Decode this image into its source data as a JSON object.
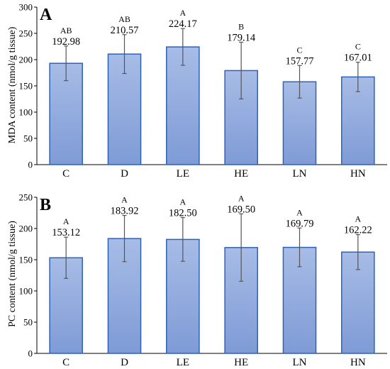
{
  "chart_data": [
    {
      "type": "bar",
      "panel_label": "A",
      "ylabel": "MDA content (nmol/g tissue)",
      "ylim": [
        0,
        300
      ],
      "yticks": [
        0,
        50,
        100,
        150,
        200,
        250,
        300
      ],
      "categories": [
        "C",
        "D",
        "LE",
        "HE",
        "LN",
        "HN"
      ],
      "values": [
        192.98,
        210.57,
        224.17,
        179.14,
        157.77,
        167.01
      ],
      "value_labels": [
        "192.98",
        "210.57",
        "224.17",
        "179.14",
        "157.77",
        "167.01"
      ],
      "error": [
        33,
        37,
        35,
        54,
        31,
        28
      ],
      "significance": [
        "AB",
        "AB",
        "A",
        "B",
        "C",
        "C"
      ],
      "bar_color": "#8EA8DC",
      "bar_edge": "#2E62B8"
    },
    {
      "type": "bar",
      "panel_label": "B",
      "ylabel": "PC content (nmol/g tissue)",
      "ylim": [
        0,
        250
      ],
      "yticks": [
        0,
        50,
        100,
        150,
        200,
        250
      ],
      "categories": [
        "C",
        "D",
        "LE",
        "HE",
        "LN",
        "HN"
      ],
      "values": [
        153.12,
        183.92,
        182.5,
        169.5,
        169.79,
        162.22
      ],
      "value_labels": [
        "153.12",
        "183.92",
        "182.50",
        "169.50",
        "169.79",
        "162.22"
      ],
      "error": [
        33,
        37,
        35,
        54,
        31,
        28
      ],
      "significance": [
        "A",
        "A",
        "A",
        "A",
        "A",
        "A"
      ],
      "bar_color": "#8EA8DC",
      "bar_edge": "#2E62B8"
    }
  ]
}
